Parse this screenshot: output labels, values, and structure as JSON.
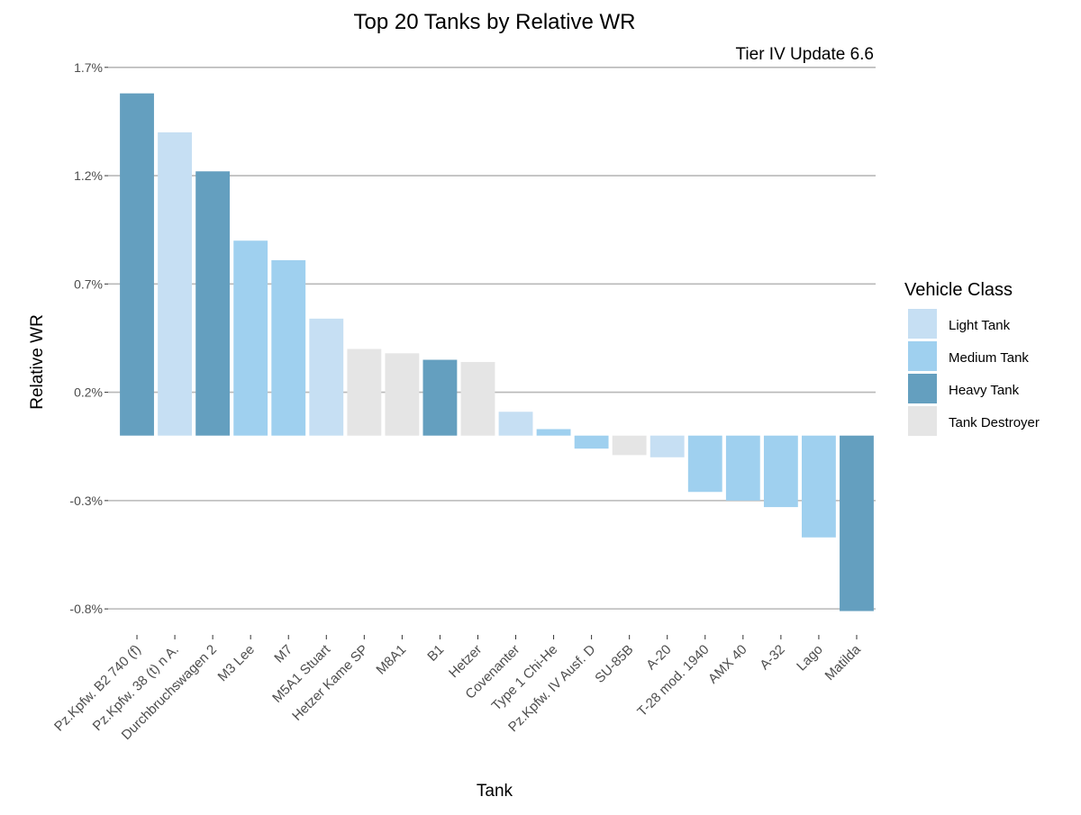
{
  "chart_data": {
    "type": "bar",
    "title": "Top 20 Tanks by Relative WR",
    "subtitle": "Tier IV Update 6.6",
    "xlabel": "Tank",
    "ylabel": "Relative WR",
    "ylim": [
      -0.0092,
      0.0172
    ],
    "yticks": [
      -0.008,
      -0.003,
      0.002,
      0.007,
      0.012,
      0.017
    ],
    "ytick_labels": [
      "-0.8%",
      "-0.3%",
      "0.2%",
      "0.7%",
      "1.2%",
      "1.7%"
    ],
    "grid": true,
    "legend": {
      "title": "Vehicle Class",
      "placement": "right",
      "entries": [
        {
          "name": "Light Tank",
          "color": "#c6dff3"
        },
        {
          "name": "Medium Tank",
          "color": "#9fd0ef"
        },
        {
          "name": "Heavy Tank",
          "color": "#649fbf"
        },
        {
          "name": "Tank Destroyer",
          "color": "#e5e5e5"
        }
      ]
    },
    "categories": [
      "Pz.Kpfw. B2 740 (f)",
      "Pz.Kpfw. 38 (t) n A.",
      "Durchbruchswagen 2",
      "M3 Lee",
      "M7",
      "M5A1 Stuart",
      "Hetzer Kame SP",
      "M8A1",
      "B1",
      "Hetzer",
      "Covenanter",
      "Type 1 Chi-He",
      "Pz.Kpfw. IV Ausf. D",
      "SU-85B",
      "A-20",
      "T-28 mod. 1940",
      "AMX 40",
      "A-32",
      "Lago",
      "Matilda"
    ],
    "values": [
      0.0158,
      0.014,
      0.0122,
      0.009,
      0.0081,
      0.0054,
      0.004,
      0.0038,
      0.0035,
      0.0034,
      0.0011,
      0.0003,
      -0.0006,
      -0.0009,
      -0.001,
      -0.0026,
      -0.003,
      -0.0033,
      -0.0047,
      -0.0081
    ],
    "classes": [
      "Heavy Tank",
      "Light Tank",
      "Heavy Tank",
      "Medium Tank",
      "Medium Tank",
      "Light Tank",
      "Tank Destroyer",
      "Tank Destroyer",
      "Heavy Tank",
      "Tank Destroyer",
      "Light Tank",
      "Medium Tank",
      "Medium Tank",
      "Tank Destroyer",
      "Light Tank",
      "Medium Tank",
      "Medium Tank",
      "Medium Tank",
      "Medium Tank",
      "Heavy Tank"
    ]
  }
}
